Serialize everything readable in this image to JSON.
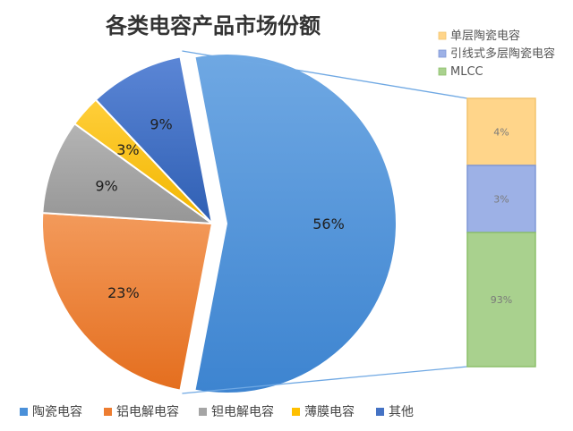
{
  "chart_data": {
    "type": "bar-of-pie",
    "title": "各类电容产品市场份额",
    "pie": {
      "categories": [
        "陶瓷电容",
        "铝电解电容",
        "钽电解电容",
        "薄膜电容",
        "其他"
      ],
      "values": [
        56,
        23,
        9,
        3,
        9
      ],
      "labels": [
        "56%",
        "23%",
        "9%",
        "3%",
        "9%"
      ],
      "colors": [
        "#4A90D9",
        "#ED7D31",
        "#A5A5A5",
        "#FFC000",
        "#4472C4"
      ],
      "legend_position": "bottom"
    },
    "bar": {
      "categories": [
        "单层陶瓷电容",
        "引线式多层陶瓷电容",
        "MLCC"
      ],
      "values": [
        4,
        3,
        93
      ],
      "labels": [
        "4%",
        "3%",
        "93%"
      ],
      "colors": [
        "#FFD58A",
        "#9DB1E6",
        "#A9D18E"
      ],
      "legend_position": "top-right",
      "expands": "陶瓷电容"
    }
  }
}
